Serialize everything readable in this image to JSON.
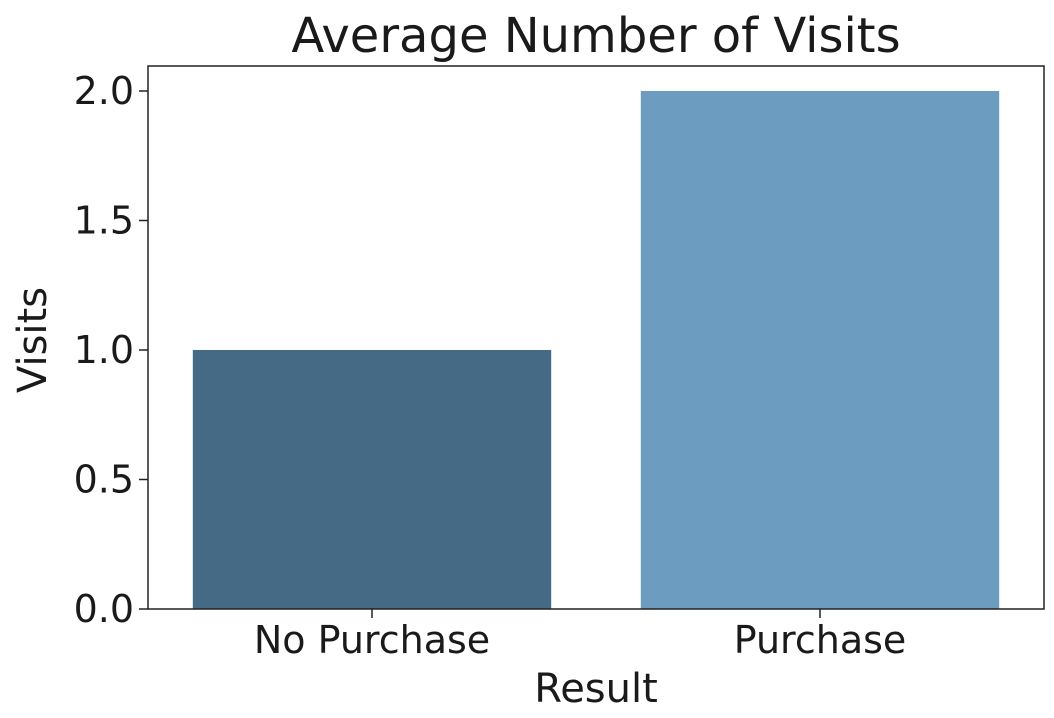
{
  "chart_data": {
    "type": "bar",
    "title": "Average Number of Visits",
    "xlabel": "Result",
    "ylabel": "Visits",
    "categories": [
      "No Purchase",
      "Purchase"
    ],
    "values": [
      1.0,
      2.0
    ],
    "colors": [
      "#446a86",
      "#6c9dc0"
    ],
    "ylim": [
      0,
      2.1
    ],
    "yticks": [
      "0.0",
      "0.5",
      "1.0",
      "1.5",
      "2.0"
    ],
    "grid": false,
    "legend": "none"
  }
}
